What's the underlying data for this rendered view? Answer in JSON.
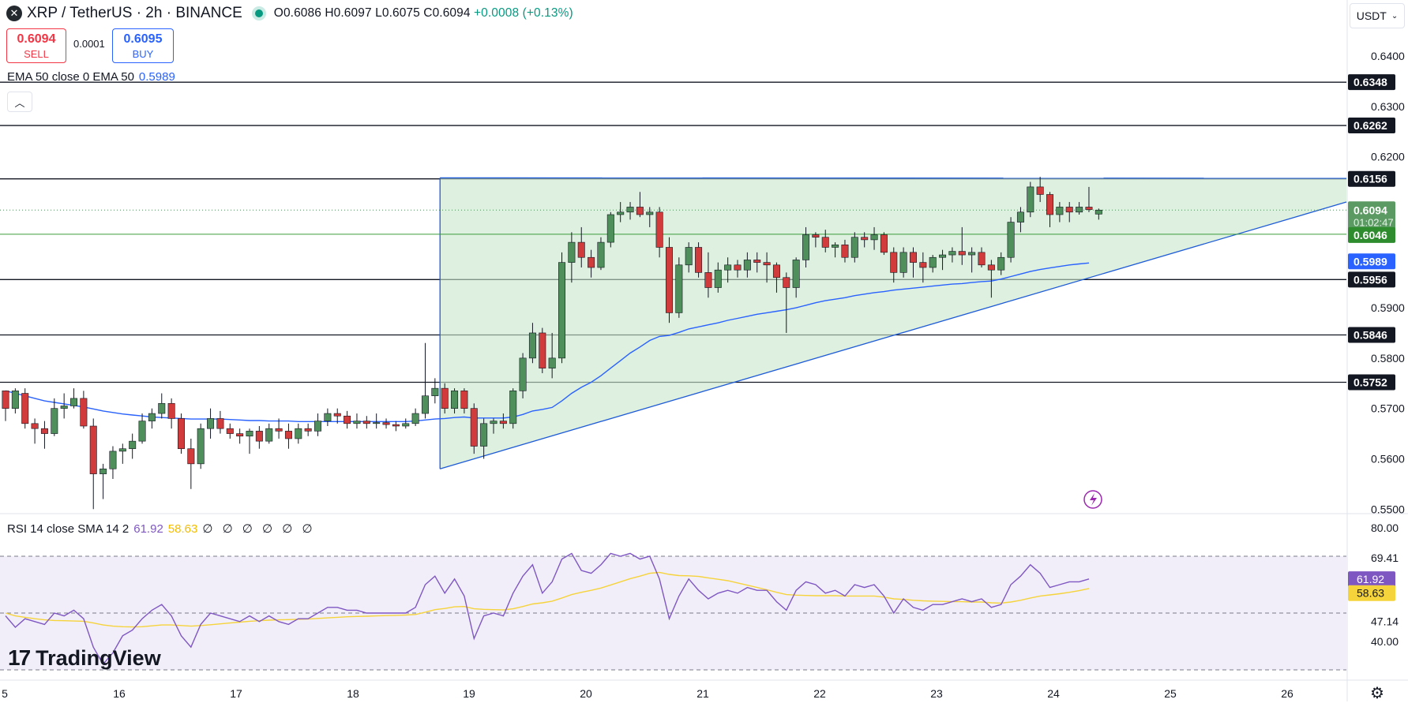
{
  "header": {
    "symbol": "XRP / TetherUS · 2h · BINANCE",
    "open": "O0.6086",
    "high": "H0.6097",
    "low": "L0.6075",
    "close": "C0.6094",
    "change": "+0.0008 (+0.13%)"
  },
  "trade": {
    "sell_price": "0.6094",
    "sell_label": "SELL",
    "spread": "0.0001",
    "buy_price": "0.6095",
    "buy_label": "BUY"
  },
  "ema_legend": {
    "label": "EMA 50 close 0 EMA 50",
    "value": "0.5989"
  },
  "rsi_legend": {
    "label": "RSI 14 close SMA 14 2",
    "rsi": "61.92",
    "sma": "58.63",
    "extra": "∅ ∅ ∅ ∅ ∅ ∅"
  },
  "currency": "USDT",
  "logo": "TradingView",
  "colors": {
    "up": "#4f8f5c",
    "down": "#d23b3b",
    "ema": "#2962ff",
    "rsi": "#7e57c2",
    "rsi_sma": "#f5d33b",
    "triangle_fill": "#c8e6c9"
  },
  "chart_data": [
    {
      "type": "candlestick",
      "title": "XRP / TetherUS · 2h · BINANCE",
      "x_ticks": [
        "5",
        "16",
        "17",
        "18",
        "19",
        "20",
        "21",
        "22",
        "23",
        "24",
        "25",
        "26"
      ],
      "y_ticks": [
        "0.6400",
        "0.6300",
        "0.6200",
        "0.5900",
        "0.5800",
        "0.5700",
        "0.5600",
        "0.5500"
      ],
      "ylim": [
        0.548,
        0.648
      ],
      "horizontal_levels": [
        "0.6348",
        "0.6262",
        "0.6156",
        "0.5956",
        "0.5846",
        "0.5752"
      ],
      "current_price": {
        "value": "0.6094",
        "countdown": "01:02:47"
      },
      "green_level": "0.6046",
      "ema50_label": "0.5989",
      "candles": [
        [
          0.5735,
          0.5735,
          0.5675,
          0.57
        ],
        [
          0.57,
          0.574,
          0.569,
          0.5735
        ],
        [
          0.573,
          0.574,
          0.566,
          0.567
        ],
        [
          0.567,
          0.568,
          0.563,
          0.566
        ],
        [
          0.566,
          0.5675,
          0.562,
          0.565
        ],
        [
          0.565,
          0.572,
          0.5645,
          0.57
        ],
        [
          0.57,
          0.573,
          0.568,
          0.5705
        ],
        [
          0.5705,
          0.574,
          0.57,
          0.572
        ],
        [
          0.572,
          0.5735,
          0.566,
          0.5665
        ],
        [
          0.5665,
          0.568,
          0.55,
          0.557
        ],
        [
          0.557,
          0.559,
          0.552,
          0.558
        ],
        [
          0.558,
          0.5625,
          0.556,
          0.5615
        ],
        [
          0.5615,
          0.563,
          0.559,
          0.562
        ],
        [
          0.562,
          0.565,
          0.56,
          0.5635
        ],
        [
          0.5635,
          0.569,
          0.563,
          0.5675
        ],
        [
          0.5675,
          0.57,
          0.566,
          0.569
        ],
        [
          0.569,
          0.573,
          0.568,
          0.571
        ],
        [
          0.571,
          0.572,
          0.566,
          0.568
        ],
        [
          0.568,
          0.569,
          0.561,
          0.562
        ],
        [
          0.562,
          0.564,
          0.554,
          0.559
        ],
        [
          0.559,
          0.567,
          0.558,
          0.566
        ],
        [
          0.566,
          0.57,
          0.564,
          0.568
        ],
        [
          0.568,
          0.5695,
          0.565,
          0.566
        ],
        [
          0.566,
          0.567,
          0.564,
          0.565
        ],
        [
          0.565,
          0.566,
          0.563,
          0.5645
        ],
        [
          0.5645,
          0.566,
          0.561,
          0.5655
        ],
        [
          0.5655,
          0.5665,
          0.562,
          0.5635
        ],
        [
          0.5635,
          0.567,
          0.563,
          0.566
        ],
        [
          0.566,
          0.568,
          0.564,
          0.5655
        ],
        [
          0.5655,
          0.567,
          0.562,
          0.564
        ],
        [
          0.564,
          0.567,
          0.563,
          0.566
        ],
        [
          0.566,
          0.567,
          0.5645,
          0.5655
        ],
        [
          0.5655,
          0.569,
          0.5645,
          0.5675
        ],
        [
          0.5675,
          0.57,
          0.5665,
          0.569
        ],
        [
          0.569,
          0.57,
          0.567,
          0.5685
        ],
        [
          0.5685,
          0.5695,
          0.566,
          0.567
        ],
        [
          0.567,
          0.569,
          0.566,
          0.5675
        ],
        [
          0.5675,
          0.5685,
          0.566,
          0.567
        ],
        [
          0.567,
          0.569,
          0.566,
          0.5672
        ],
        [
          0.5672,
          0.568,
          0.566,
          0.5668
        ],
        [
          0.5668,
          0.5675,
          0.5655,
          0.5665
        ],
        [
          0.5665,
          0.568,
          0.566,
          0.567
        ],
        [
          0.567,
          0.57,
          0.5665,
          0.569
        ],
        [
          0.569,
          0.583,
          0.568,
          0.5725
        ],
        [
          0.5725,
          0.576,
          0.571,
          0.574
        ],
        [
          0.574,
          0.575,
          0.569,
          0.57
        ],
        [
          0.57,
          0.574,
          0.569,
          0.5735
        ],
        [
          0.5735,
          0.574,
          0.569,
          0.57
        ],
        [
          0.57,
          0.571,
          0.561,
          0.5625
        ],
        [
          0.5625,
          0.568,
          0.56,
          0.567
        ],
        [
          0.567,
          0.568,
          0.565,
          0.5675
        ],
        [
          0.5675,
          0.569,
          0.566,
          0.567
        ],
        [
          0.567,
          0.574,
          0.566,
          0.5735
        ],
        [
          0.5735,
          0.581,
          0.572,
          0.58
        ],
        [
          0.58,
          0.587,
          0.579,
          0.585
        ],
        [
          0.585,
          0.586,
          0.577,
          0.578
        ],
        [
          0.578,
          0.585,
          0.576,
          0.58
        ],
        [
          0.58,
          0.601,
          0.579,
          0.599
        ],
        [
          0.599,
          0.605,
          0.595,
          0.603
        ],
        [
          0.603,
          0.606,
          0.598,
          0.6
        ],
        [
          0.6,
          0.6015,
          0.596,
          0.598
        ],
        [
          0.598,
          0.604,
          0.5975,
          0.603
        ],
        [
          0.603,
          0.609,
          0.602,
          0.6085
        ],
        [
          0.6085,
          0.611,
          0.607,
          0.609
        ],
        [
          0.609,
          0.611,
          0.6075,
          0.61
        ],
        [
          0.61,
          0.613,
          0.608,
          0.6085
        ],
        [
          0.6085,
          0.61,
          0.606,
          0.609
        ],
        [
          0.609,
          0.61,
          0.6,
          0.602
        ],
        [
          0.602,
          0.604,
          0.587,
          0.589
        ],
        [
          0.589,
          0.6,
          0.588,
          0.5985
        ],
        [
          0.5985,
          0.603,
          0.597,
          0.602
        ],
        [
          0.602,
          0.603,
          0.596,
          0.597
        ],
        [
          0.597,
          0.601,
          0.592,
          0.594
        ],
        [
          0.594,
          0.599,
          0.593,
          0.5975
        ],
        [
          0.5975,
          0.6,
          0.595,
          0.5985
        ],
        [
          0.5985,
          0.5995,
          0.596,
          0.5975
        ],
        [
          0.5975,
          0.601,
          0.596,
          0.5995
        ],
        [
          0.5995,
          0.601,
          0.597,
          0.599
        ],
        [
          0.599,
          0.601,
          0.595,
          0.5985
        ],
        [
          0.5985,
          0.599,
          0.593,
          0.596
        ],
        [
          0.596,
          0.597,
          0.585,
          0.594
        ],
        [
          0.594,
          0.6,
          0.592,
          0.5995
        ],
        [
          0.5995,
          0.606,
          0.598,
          0.6045
        ],
        [
          0.6045,
          0.605,
          0.602,
          0.604
        ],
        [
          0.604,
          0.6055,
          0.601,
          0.602
        ],
        [
          0.602,
          0.603,
          0.6,
          0.6025
        ],
        [
          0.6025,
          0.6035,
          0.599,
          0.6
        ],
        [
          0.6,
          0.605,
          0.599,
          0.604
        ],
        [
          0.604,
          0.605,
          0.602,
          0.6035
        ],
        [
          0.6035,
          0.606,
          0.6015,
          0.6045
        ],
        [
          0.6045,
          0.605,
          0.6005,
          0.601
        ],
        [
          0.601,
          0.602,
          0.595,
          0.597
        ],
        [
          0.597,
          0.602,
          0.596,
          0.601
        ],
        [
          0.601,
          0.602,
          0.596,
          0.599
        ],
        [
          0.599,
          0.601,
          0.595,
          0.598
        ],
        [
          0.598,
          0.6005,
          0.597,
          0.6
        ],
        [
          0.6,
          0.6015,
          0.5975,
          0.6005
        ],
        [
          0.6005,
          0.602,
          0.599,
          0.6012
        ],
        [
          0.6012,
          0.606,
          0.5985,
          0.6005
        ],
        [
          0.6005,
          0.602,
          0.597,
          0.601
        ],
        [
          0.601,
          0.602,
          0.598,
          0.5985
        ],
        [
          0.5985,
          0.5995,
          0.592,
          0.5975
        ],
        [
          0.5975,
          0.601,
          0.5965,
          0.6
        ],
        [
          0.6,
          0.608,
          0.599,
          0.607
        ],
        [
          0.607,
          0.61,
          0.605,
          0.609
        ],
        [
          0.609,
          0.615,
          0.608,
          0.614
        ],
        [
          0.614,
          0.616,
          0.611,
          0.6125
        ],
        [
          0.6125,
          0.613,
          0.606,
          0.6085
        ],
        [
          0.6085,
          0.611,
          0.607,
          0.61
        ],
        [
          0.61,
          0.611,
          0.607,
          0.609
        ],
        [
          0.609,
          0.611,
          0.6085,
          0.61
        ],
        [
          0.61,
          0.614,
          0.609,
          0.6095
        ],
        [
          0.6086,
          0.6097,
          0.6075,
          0.6094
        ]
      ],
      "ema50": [
        0.5735,
        0.573,
        0.5725,
        0.572,
        0.5715,
        0.5712,
        0.5709,
        0.5706,
        0.5703,
        0.5699,
        0.5695,
        0.5692,
        0.5689,
        0.5687,
        0.5685,
        0.5683,
        0.5682,
        0.5681,
        0.568,
        0.5679,
        0.5679,
        0.5679,
        0.5679,
        0.5678,
        0.5677,
        0.5676,
        0.5676,
        0.5675,
        0.5675,
        0.5675,
        0.5674,
        0.5674,
        0.5674,
        0.5674,
        0.5674,
        0.5674,
        0.5674,
        0.5674,
        0.5674,
        0.5674,
        0.5674,
        0.5674,
        0.5675,
        0.5677,
        0.5679,
        0.568,
        0.5682,
        0.5683,
        0.5681,
        0.5681,
        0.5681,
        0.5681,
        0.5683,
        0.5688,
        0.5695,
        0.5698,
        0.5702,
        0.5715,
        0.573,
        0.5742,
        0.5752,
        0.5765,
        0.578,
        0.5795,
        0.581,
        0.5822,
        0.5835,
        0.5843,
        0.5845,
        0.5851,
        0.5858,
        0.5862,
        0.5866,
        0.587,
        0.5875,
        0.5879,
        0.5883,
        0.5887,
        0.589,
        0.5893,
        0.5896,
        0.59,
        0.5905,
        0.591,
        0.5914,
        0.5917,
        0.592,
        0.5924,
        0.5927,
        0.593,
        0.5932,
        0.5935,
        0.5937,
        0.5939,
        0.5941,
        0.5943,
        0.5945,
        0.5947,
        0.5948,
        0.595,
        0.5952,
        0.5953,
        0.5957,
        0.5962,
        0.5967,
        0.5972,
        0.5976,
        0.5979,
        0.5982,
        0.5985,
        0.5987,
        0.5989
      ],
      "triangle": {
        "start_index": 45,
        "top": 0.6158,
        "apex_low": 0.558,
        "right_edge_value": 0.611
      }
    },
    {
      "type": "line",
      "title": "RSI 14 close SMA 14 2",
      "y_ticks": [
        "80.00",
        "69.41",
        "47.14",
        "40.00"
      ],
      "ylim": [
        30,
        82
      ],
      "band": [
        70,
        30
      ],
      "mid_line": 50,
      "series": [
        {
          "name": "RSI",
          "values": [
            49,
            45,
            48,
            47,
            46,
            50,
            49,
            51,
            48,
            38,
            32,
            36,
            42,
            44,
            48,
            51,
            53,
            49,
            42,
            38,
            46,
            50,
            49,
            48,
            47,
            49,
            47,
            49,
            47,
            46,
            48,
            48,
            50,
            52,
            52,
            51,
            51,
            50,
            50,
            50,
            50,
            50,
            52,
            60,
            63,
            57,
            62,
            56,
            41,
            49,
            50,
            49,
            57,
            63,
            67,
            57,
            61,
            69,
            71,
            65,
            64,
            67,
            71,
            70,
            71,
            69,
            70,
            62,
            48,
            56,
            62,
            58,
            55,
            57,
            58,
            57,
            59,
            58,
            58,
            54,
            51,
            58,
            61,
            60,
            57,
            58,
            56,
            60,
            59,
            60,
            56,
            50,
            55,
            52,
            51,
            53,
            53,
            54,
            55,
            54,
            55,
            52,
            53,
            60,
            63,
            67,
            64,
            59,
            60,
            61,
            61,
            62
          ]
        },
        {
          "name": "SMA",
          "values": [
            50,
            49,
            48.5,
            48,
            47.6,
            47.4,
            47.3,
            47.2,
            47.1,
            46.5,
            45.8,
            45.4,
            45.2,
            45.1,
            45.2,
            45.5,
            45.8,
            45.8,
            45.6,
            45.4,
            45.6,
            45.9,
            46.2,
            46.5,
            46.8,
            47.1,
            47.3,
            47.5,
            47.6,
            47.7,
            47.8,
            47.9,
            48.1,
            48.3,
            48.5,
            48.7,
            48.8,
            48.9,
            49,
            49.1,
            49.2,
            49.3,
            49.5,
            50.3,
            51.2,
            51.6,
            52.2,
            52.3,
            51.5,
            51.3,
            51.2,
            51.1,
            51.5,
            52.3,
            53.2,
            53.6,
            54.2,
            55.3,
            56.5,
            57.3,
            58,
            58.8,
            59.9,
            61,
            62.1,
            63,
            64,
            64.3,
            63.6,
            63.2,
            63.1,
            62.9,
            62.4,
            61.9,
            61.4,
            60.6,
            59.8,
            59,
            58.2,
            57.3,
            56.5,
            56.3,
            56.2,
            56.1,
            56.1,
            56.1,
            56,
            56,
            56,
            56,
            55.6,
            55,
            54.8,
            54.5,
            54.3,
            54.2,
            54.1,
            54,
            54,
            53.9,
            53.9,
            53.6,
            53.5,
            53.9,
            54.5,
            55.3,
            56,
            56.4,
            56.8,
            57.3,
            57.9,
            58.63
          ]
        }
      ]
    }
  ]
}
